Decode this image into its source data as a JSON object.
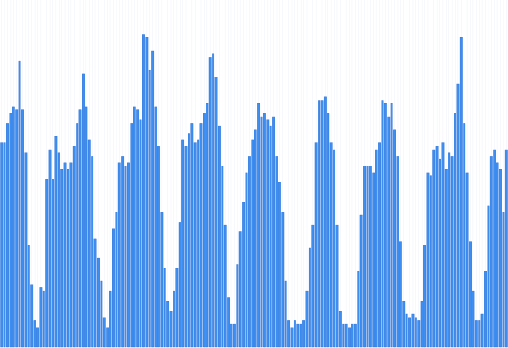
{
  "chart_data": {
    "type": "bar",
    "title": "",
    "xlabel": "",
    "ylabel": "",
    "ylim": [
      0,
      100
    ],
    "grid": true,
    "bar_color": "#3d8ef0",
    "bar_edge_color": "#2a6fd6",
    "grid_color": "#eef2f8",
    "values": [
      62,
      62,
      68,
      71,
      73,
      72,
      87,
      72,
      59,
      31,
      19,
      8,
      6,
      18,
      17,
      51,
      60,
      51,
      64,
      59,
      54,
      56,
      54,
      56,
      61,
      68,
      72,
      83,
      73,
      63,
      58,
      33,
      27,
      20,
      9,
      6,
      17,
      36,
      41,
      56,
      58,
      55,
      56,
      68,
      73,
      72,
      69,
      95,
      94,
      84,
      90,
      73,
      61,
      41,
      24,
      14,
      11,
      17,
      24,
      38,
      63,
      61,
      65,
      68,
      62,
      63,
      68,
      71,
      74,
      88,
      89,
      82,
      67,
      55,
      37,
      15,
      7,
      7,
      25,
      35,
      44,
      53,
      58,
      63,
      66,
      74,
      70,
      71,
      69,
      67,
      70,
      58,
      50,
      41,
      20,
      8,
      6,
      8,
      7,
      7,
      8,
      17,
      30,
      37,
      62,
      75,
      75,
      76,
      71,
      62,
      60,
      37,
      11,
      7,
      7,
      6,
      7,
      7,
      23,
      40,
      55,
      55,
      55,
      53,
      60,
      62,
      75,
      74,
      70,
      74,
      66,
      58,
      32,
      14,
      10,
      9,
      10,
      9,
      8,
      14,
      31,
      53,
      52,
      60,
      61,
      57,
      62,
      54,
      59,
      58,
      71,
      80,
      94,
      68,
      53,
      32,
      17,
      8,
      8,
      10,
      23,
      43,
      58,
      60,
      56,
      54,
      41,
      60
    ]
  }
}
